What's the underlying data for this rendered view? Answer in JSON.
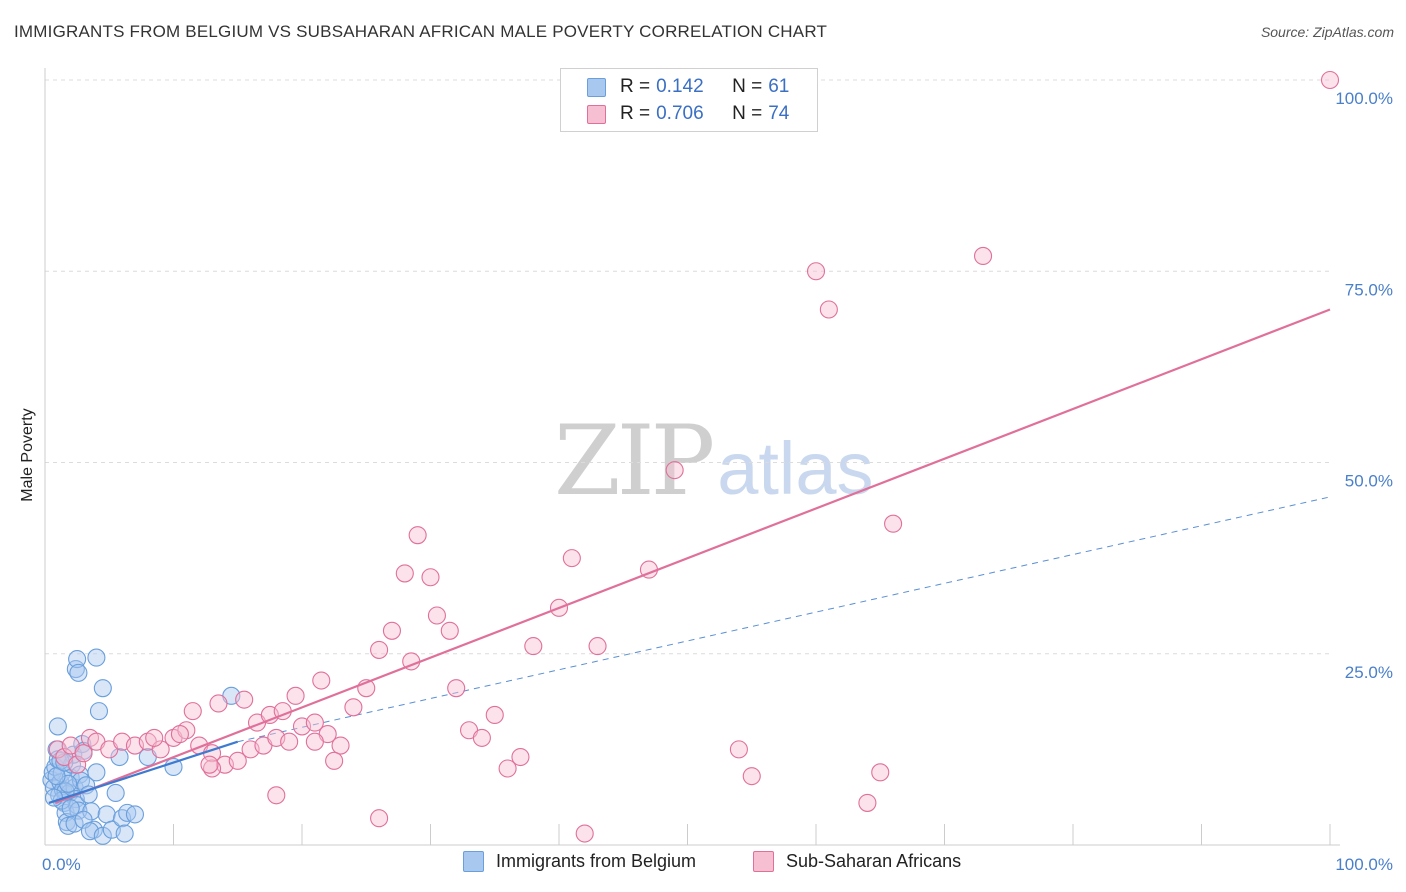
{
  "chart_data": {
    "type": "scatter",
    "title": "IMMIGRANTS FROM BELGIUM VS SUBSAHARAN AFRICAN MALE POVERTY CORRELATION CHART",
    "source": "Source: ZipAtlas.com",
    "xlabel": "",
    "ylabel": "Male Poverty",
    "xlim": [
      0,
      100
    ],
    "ylim": [
      0,
      100
    ],
    "x_tick_labels": [
      {
        "value": 0,
        "label": "0.0%"
      },
      {
        "value": 100,
        "label": "100.0%"
      }
    ],
    "y_tick_labels": [
      {
        "value": 25,
        "label": "25.0%"
      },
      {
        "value": 50,
        "label": "50.0%"
      },
      {
        "value": 75,
        "label": "75.0%"
      },
      {
        "value": 100,
        "label": "100.0%"
      }
    ],
    "grid": true,
    "watermark": {
      "part1": "ZIP",
      "part2": "atlas"
    },
    "legend_stats": [
      {
        "r_label": "R =",
        "r_value": "0.142",
        "n_label": "N =",
        "n_value": "61"
      },
      {
        "r_label": "R =",
        "r_value": "0.706",
        "n_label": "N =",
        "n_value": "74"
      }
    ],
    "series": [
      {
        "name": "Immigrants from Belgium",
        "color": "#6a9fdc",
        "fill": "#a8c8f0",
        "trend_solid": {
          "x": [
            0.3,
            15
          ],
          "y": [
            5.5,
            13.5
          ]
        },
        "trend_dashed": {
          "x": [
            15,
            100
          ],
          "y": [
            13.5,
            45.5
          ]
        },
        "points": [
          [
            0.5,
            8.5
          ],
          [
            0.6,
            9.5
          ],
          [
            0.7,
            7.5
          ],
          [
            0.8,
            10.2
          ],
          [
            0.9,
            12.5
          ],
          [
            1.0,
            11.2
          ],
          [
            1.1,
            6.5
          ],
          [
            1.2,
            8.2
          ],
          [
            1.3,
            9.4
          ],
          [
            1.4,
            7.2
          ],
          [
            1.5,
            5.5
          ],
          [
            1.6,
            4.2
          ],
          [
            1.7,
            3.0
          ],
          [
            1.8,
            2.5
          ],
          [
            1.9,
            6.8
          ],
          [
            2.0,
            8.8
          ],
          [
            2.1,
            10.5
          ],
          [
            2.2,
            11.8
          ],
          [
            2.3,
            7.5
          ],
          [
            2.4,
            6.0
          ],
          [
            2.5,
            5.2
          ],
          [
            2.6,
            4.5
          ],
          [
            2.7,
            9.2
          ],
          [
            2.8,
            8.4
          ],
          [
            2.9,
            13.2
          ],
          [
            3.0,
            12.3
          ],
          [
            3.2,
            7.8
          ],
          [
            3.4,
            6.6
          ],
          [
            3.6,
            4.4
          ],
          [
            3.8,
            2.0
          ],
          [
            4.0,
            9.5
          ],
          [
            4.2,
            17.5
          ],
          [
            4.5,
            20.5
          ],
          [
            2.4,
            23.0
          ],
          [
            2.5,
            24.3
          ],
          [
            2.6,
            22.5
          ],
          [
            4.0,
            24.5
          ],
          [
            1.0,
            15.5
          ],
          [
            1.2,
            11.0
          ],
          [
            2.3,
            2.8
          ],
          [
            3.0,
            3.3
          ],
          [
            3.5,
            1.8
          ],
          [
            4.5,
            1.2
          ],
          [
            4.8,
            4.0
          ],
          [
            5.2,
            2.0
          ],
          [
            5.5,
            6.8
          ],
          [
            5.8,
            11.5
          ],
          [
            6.0,
            3.5
          ],
          [
            6.2,
            1.5
          ],
          [
            6.4,
            4.2
          ],
          [
            1.6,
            7.0
          ],
          [
            1.8,
            8.0
          ],
          [
            0.9,
            9.0
          ],
          [
            1.3,
            5.8
          ],
          [
            0.7,
            6.2
          ],
          [
            2.0,
            4.8
          ],
          [
            8.0,
            11.5
          ],
          [
            10.0,
            10.2
          ],
          [
            14.5,
            19.5
          ],
          [
            7.0,
            4.0
          ],
          [
            1.5,
            10.8
          ]
        ]
      },
      {
        "name": "Sub-Saharan Africans",
        "color": "#e0709a",
        "fill": "#f6bfd2",
        "trend_solid": {
          "x": [
            0.8,
            100
          ],
          "y": [
            5.5,
            70.0
          ]
        },
        "points": [
          [
            1.0,
            12.5
          ],
          [
            1.5,
            11.5
          ],
          [
            2.0,
            13.0
          ],
          [
            2.5,
            10.5
          ],
          [
            3.0,
            12.0
          ],
          [
            3.5,
            14.0
          ],
          [
            4.0,
            13.5
          ],
          [
            5.0,
            12.5
          ],
          [
            6.0,
            13.5
          ],
          [
            7.0,
            13.0
          ],
          [
            8.0,
            13.5
          ],
          [
            9.0,
            12.5
          ],
          [
            10.0,
            14.0
          ],
          [
            11.0,
            15.0
          ],
          [
            12.0,
            13.0
          ],
          [
            13.0,
            12.0
          ],
          [
            14.0,
            10.5
          ],
          [
            15.0,
            11.0
          ],
          [
            16.0,
            12.5
          ],
          [
            17.0,
            13.0
          ],
          [
            18.0,
            14.0
          ],
          [
            19.0,
            13.5
          ],
          [
            20.0,
            15.5
          ],
          [
            21.0,
            16.0
          ],
          [
            22.0,
            14.5
          ],
          [
            23.0,
            13.0
          ],
          [
            8.5,
            14.0
          ],
          [
            10.5,
            14.5
          ],
          [
            11.5,
            17.5
          ],
          [
            13.5,
            18.5
          ],
          [
            15.5,
            19.0
          ],
          [
            16.5,
            16.0
          ],
          [
            17.5,
            17.0
          ],
          [
            18.5,
            17.5
          ],
          [
            19.5,
            19.5
          ],
          [
            21.5,
            21.5
          ],
          [
            13.0,
            10.0
          ],
          [
            12.8,
            10.5
          ],
          [
            21.0,
            13.5
          ],
          [
            22.5,
            11.0
          ],
          [
            24.0,
            18.0
          ],
          [
            25.0,
            20.5
          ],
          [
            26.0,
            25.5
          ],
          [
            27.0,
            28.0
          ],
          [
            28.0,
            35.5
          ],
          [
            29.0,
            40.5
          ],
          [
            30.0,
            35.0
          ],
          [
            28.5,
            24.0
          ],
          [
            30.5,
            30.0
          ],
          [
            32.0,
            20.5
          ],
          [
            31.5,
            28.0
          ],
          [
            33.0,
            15.0
          ],
          [
            34.0,
            14.0
          ],
          [
            35.0,
            17.0
          ],
          [
            36.0,
            10.0
          ],
          [
            37.0,
            11.5
          ],
          [
            38.0,
            26.0
          ],
          [
            40.0,
            31.0
          ],
          [
            41.0,
            37.5
          ],
          [
            43.0,
            26.0
          ],
          [
            47.0,
            36.0
          ],
          [
            49.0,
            49.0
          ],
          [
            54.0,
            12.5
          ],
          [
            55.0,
            9.0
          ],
          [
            60.0,
            75.0
          ],
          [
            61.0,
            70.0
          ],
          [
            64.0,
            5.5
          ],
          [
            65.0,
            9.5
          ],
          [
            73.0,
            77.0
          ],
          [
            66.0,
            42.0
          ],
          [
            100.0,
            100.0
          ],
          [
            42.0,
            1.5
          ],
          [
            26.0,
            3.5
          ],
          [
            18.0,
            6.5
          ]
        ]
      }
    ]
  }
}
